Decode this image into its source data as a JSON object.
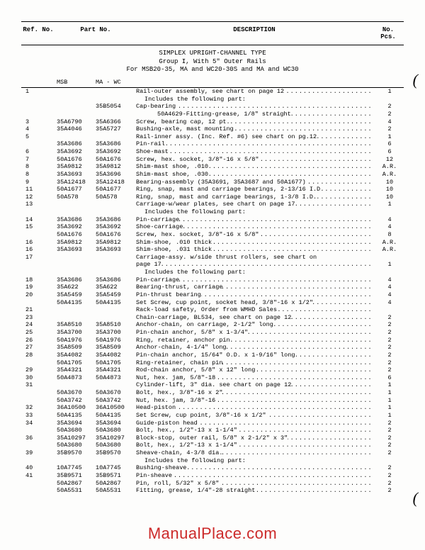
{
  "headers": {
    "ref": "Ref. No.",
    "part": "Part No.",
    "desc": "DESCRIPTION",
    "pcs": "No. Pcs.",
    "sub_msb": "MSB",
    "sub_mawc": "MA - WC"
  },
  "title": {
    "line1": "SIMPLEX UPRIGHT-CHANNEL TYPE",
    "line2": "Group I, With 5\" Outer Rails",
    "line3": "For MSB20-35, MA and WC20-30S and MA and WC30"
  },
  "watermark": "ManualPlace.com",
  "paren": "(",
  "rows": [
    {
      "ref": "1",
      "msb": "",
      "mawc": "",
      "desc": "Rail-outer assembly, see chart on page 12",
      "pcs": "1",
      "indent": 0
    },
    {
      "ref": "",
      "msb": "",
      "mawc": "",
      "desc": "Includes the following part:",
      "pcs": "",
      "indent": 1,
      "nodots": true
    },
    {
      "ref": "",
      "msb": "",
      "mawc": "35B5054",
      "desc": "Cap-bearing",
      "pcs": "2",
      "indent": 0
    },
    {
      "ref": "",
      "msb": "",
      "mawc": "",
      "desc": "50A4629-Fitting-grease, 1/8\" straight",
      "pcs": "2",
      "indent": 2
    },
    {
      "ref": "3",
      "msb": "35A6790",
      "mawc": "35A6366",
      "desc": "Screw, bearing cap, 12 pt.",
      "pcs": "4",
      "indent": 0
    },
    {
      "ref": "4",
      "msb": "35A4046",
      "mawc": "35A5727",
      "desc": "Bushing-axle, mast mounting",
      "pcs": "2",
      "indent": 0
    },
    {
      "ref": "5",
      "msb": "",
      "mawc": "",
      "desc": "Rail-inner assy. (Inc. Ref. #6) see chart on pg.12",
      "pcs": "1",
      "indent": 0
    },
    {
      "ref": "",
      "msb": "35A3686",
      "mawc": "35A3686",
      "desc": "Pin-rail",
      "pcs": "6",
      "indent": 0
    },
    {
      "ref": "6",
      "msb": "35A3692",
      "mawc": "35A3692",
      "desc": "Shoe-mast",
      "pcs": "6",
      "indent": 0
    },
    {
      "ref": "7",
      "msb": "50A1676",
      "mawc": "50A1676",
      "desc": "Screw, hex. socket, 3/8\"-16 x 5/8\"",
      "pcs": "12",
      "indent": 0
    },
    {
      "ref": "8",
      "msb": "35A9812",
      "mawc": "35A9812",
      "desc": "Shim-mast shoe, .010",
      "pcs": "A.R.",
      "indent": 0
    },
    {
      "ref": "8",
      "msb": "35A3693",
      "mawc": "35A3696",
      "desc": "Shim-mast shoe, .030",
      "pcs": "A.R.",
      "indent": 0
    },
    {
      "ref": "9",
      "msb": "35A12418",
      "mawc": "35A12418",
      "desc": "Bearing-assembly (35A3691, 35A3687 and 50A1677)",
      "pcs": "10",
      "indent": 0
    },
    {
      "ref": "11",
      "msb": "50A1677",
      "mawc": "50A1677",
      "desc": "Ring, snap, mast and carriage bearings, 2-13/16 I.D",
      "pcs": "10",
      "indent": 0
    },
    {
      "ref": "12",
      "msb": "50A578",
      "mawc": "50A578",
      "desc": "Ring, snap, mast and carriage bearings, 1-3/8 I.D.",
      "pcs": "10",
      "indent": 0
    },
    {
      "ref": "13",
      "msb": "",
      "mawc": "",
      "desc": "Carriage-w/wear plates, see chart on page 17",
      "pcs": "1",
      "indent": 0
    },
    {
      "ref": "",
      "msb": "",
      "mawc": "",
      "desc": "Includes the following part:",
      "pcs": "",
      "indent": 1,
      "nodots": true
    },
    {
      "ref": "14",
      "msb": "35A3686",
      "mawc": "35A3686",
      "desc": "Pin-carriage",
      "pcs": "4",
      "indent": 0
    },
    {
      "ref": "15",
      "msb": "35A3692",
      "mawc": "35A3692",
      "desc": "Shoe-carriage",
      "pcs": "4",
      "indent": 0
    },
    {
      "ref": "",
      "msb": "50A1676",
      "mawc": "50A1676",
      "desc": "Screw, hex. socket, 3/8\"-16 x 5/8\"",
      "pcs": "8",
      "indent": 0
    },
    {
      "ref": "16",
      "msb": "35A9812",
      "mawc": "35A9812",
      "desc": "Shim-shoe, .010 thick",
      "pcs": "A.R.",
      "indent": 0
    },
    {
      "ref": "16",
      "msb": "35A3693",
      "mawc": "35A3693",
      "desc": "Shim-shoe, .031 thick",
      "pcs": "A.R.",
      "indent": 0
    },
    {
      "ref": "17",
      "msb": "",
      "mawc": "",
      "desc": "Carriage-assy. w/side thrust rollers, see chart on",
      "pcs": "",
      "indent": 0,
      "nodots": true
    },
    {
      "ref": "",
      "msb": "",
      "mawc": "",
      "desc": "page 17",
      "pcs": "1",
      "indent": 0
    },
    {
      "ref": "",
      "msb": "",
      "mawc": "",
      "desc": "Includes the following part:",
      "pcs": "",
      "indent": 1,
      "nodots": true
    },
    {
      "ref": "18",
      "msb": "35A3686",
      "mawc": "35A3686",
      "desc": "Pin-carriage",
      "pcs": "4",
      "indent": 0
    },
    {
      "ref": "19",
      "msb": "35A622",
      "mawc": "35A622",
      "desc": "Bearing-thrust, carriage",
      "pcs": "4",
      "indent": 0
    },
    {
      "ref": "20",
      "msb": "35A5459",
      "mawc": "35A5459",
      "desc": "Pin-thrust bearing",
      "pcs": "4",
      "indent": 0
    },
    {
      "ref": "",
      "msb": "50A4135",
      "mawc": "50A4135",
      "desc": "Set Screw, cup point, socket head, 3/8\"-16 x 1/2\"",
      "pcs": "4",
      "indent": 0
    },
    {
      "ref": "21",
      "msb": "",
      "mawc": "",
      "desc": "Rack-load safety, Order from WMHD Sales",
      "pcs": "",
      "indent": 0
    },
    {
      "ref": "23",
      "msb": "",
      "mawc": "",
      "desc": "Chain-carriage, BL534, see chart on page 12",
      "pcs": "2",
      "indent": 0
    },
    {
      "ref": "24",
      "msb": "35A8510",
      "mawc": "35A8510",
      "desc": "Anchor-chain, on carriage, 2-1/2\" long",
      "pcs": "2",
      "indent": 0
    },
    {
      "ref": "25",
      "msb": "35A3700",
      "mawc": "35A3700",
      "desc": "Pin-chain anchor, 5/8\" x 1-3/4\"",
      "pcs": "2",
      "indent": 0
    },
    {
      "ref": "26",
      "msb": "50A1976",
      "mawc": "50A1976",
      "desc": "Ring, retainer, anchor pin",
      "pcs": "2",
      "indent": 0
    },
    {
      "ref": "27",
      "msb": "35A8509",
      "mawc": "35A8509",
      "desc": "Anchor-chain, 4-1/4\" long",
      "pcs": "2",
      "indent": 0
    },
    {
      "ref": "28",
      "msb": "35A4082",
      "mawc": "35A4082",
      "desc": "Pin-chain anchor, 15/64\" O.D. x 1-9/16\" long",
      "pcs": "2",
      "indent": 0
    },
    {
      "ref": "",
      "msb": "50A1705",
      "mawc": "50A1705",
      "desc": "Ring-retainer, chain pin",
      "pcs": "2",
      "indent": 0
    },
    {
      "ref": "29",
      "msb": "35A4321",
      "mawc": "35A4321",
      "desc": "Rod-chain anchor, 5/8\" x 12\" long",
      "pcs": "2",
      "indent": 0
    },
    {
      "ref": "30",
      "msb": "50A4873",
      "mawc": "50A4873",
      "desc": "Nut, hex. jam, 5/8\"-18",
      "pcs": "6",
      "indent": 0
    },
    {
      "ref": "31",
      "msb": "",
      "mawc": "",
      "desc": "Cylinder-lift, 3\" dia. see chart on page 12",
      "pcs": "1",
      "indent": 0
    },
    {
      "ref": "",
      "msb": "50A3670",
      "mawc": "50A3670",
      "desc": "Bolt, hex., 3/8\"-16 x 2\"",
      "pcs": "1",
      "indent": 0
    },
    {
      "ref": "",
      "msb": "50A3742",
      "mawc": "50A3742",
      "desc": "Nut, hex. jam, 3/8\"-16",
      "pcs": "1",
      "indent": 0
    },
    {
      "ref": "32",
      "msb": "36A10500",
      "mawc": "36A10500",
      "desc": "Head-piston",
      "pcs": "1",
      "indent": 0
    },
    {
      "ref": "33",
      "msb": "50A4135",
      "mawc": "50A4135",
      "desc": "Set Screw, cup point, 3/8\"-16 x 1/2\"",
      "pcs": "1",
      "indent": 0
    },
    {
      "ref": "34",
      "msb": "35A3694",
      "mawc": "35A3694",
      "desc": "Guide-piston head",
      "pcs": "2",
      "indent": 0
    },
    {
      "ref": "",
      "msb": "50A3680",
      "mawc": "50A3680",
      "desc": "Bolt, hex., 1/2\"-13 x 1-1/4\"",
      "pcs": "2",
      "indent": 0
    },
    {
      "ref": "36",
      "msb": "35A10297",
      "mawc": "35A10297",
      "desc": "Block-stop, outer rail, 5/8\" x 2-1/2\" x 3\"",
      "pcs": "2",
      "indent": 0
    },
    {
      "ref": "",
      "msb": "50A3680",
      "mawc": "50A3680",
      "desc": "Bolt, hex., 1/2\"-13 x 1-1/4\"",
      "pcs": "2",
      "indent": 0
    },
    {
      "ref": "39",
      "msb": "35B9570",
      "mawc": "35B9570",
      "desc": "Sheave-chain, 4-3/8 dia.",
      "pcs": "2",
      "indent": 0
    },
    {
      "ref": "",
      "msb": "",
      "mawc": "",
      "desc": "Includes the following part:",
      "pcs": "",
      "indent": 1,
      "nodots": true
    },
    {
      "ref": "40",
      "msb": "10A7745",
      "mawc": "10A7745",
      "desc": "Bushing-sheave",
      "pcs": "2",
      "indent": 0
    },
    {
      "ref": "41",
      "msb": "35B9571",
      "mawc": "35B9571",
      "desc": "Pin-sheave",
      "pcs": "2",
      "indent": 0
    },
    {
      "ref": "",
      "msb": "50A2867",
      "mawc": "50A2867",
      "desc": "Pin, roll, 5/32\" x 5/8\"",
      "pcs": "2",
      "indent": 0
    },
    {
      "ref": "",
      "msb": "50A5531",
      "mawc": "50A5531",
      "desc": "Fitting, grease, 1/4\"-28 straight",
      "pcs": "2",
      "indent": 0
    }
  ]
}
